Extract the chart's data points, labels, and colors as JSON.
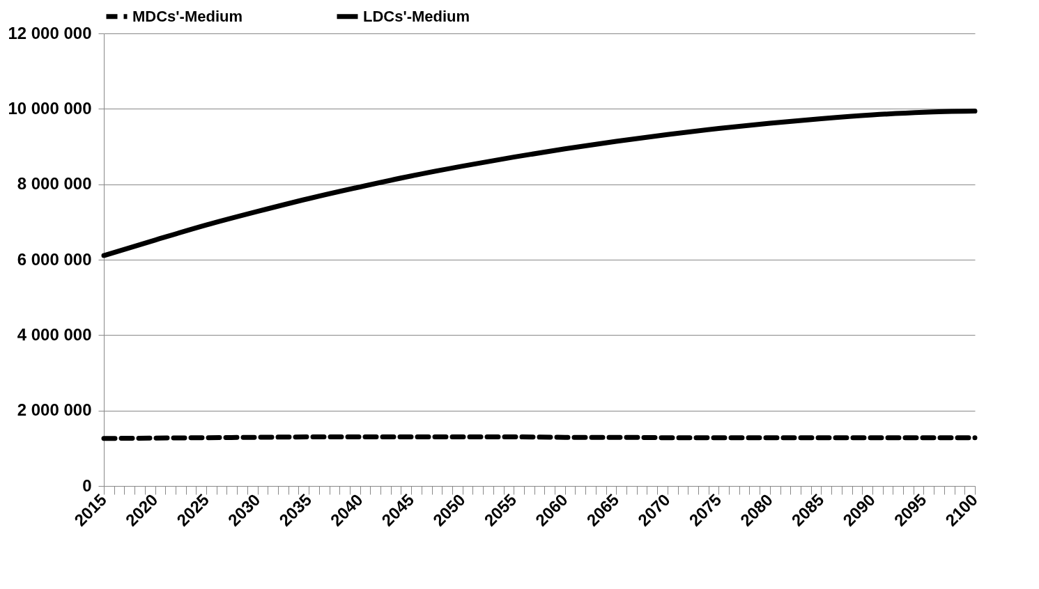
{
  "chart_data": {
    "type": "line",
    "x": [
      2015,
      2020,
      2025,
      2030,
      2035,
      2040,
      2045,
      2050,
      2055,
      2060,
      2065,
      2070,
      2075,
      2080,
      2085,
      2090,
      2095,
      2100
    ],
    "series": [
      {
        "name": "MDCs'-Medium",
        "color": "#000000",
        "line_style": "dashed",
        "values": [
          1260000,
          1270000,
          1280000,
          1290000,
          1300000,
          1300000,
          1300000,
          1300000,
          1300000,
          1290000,
          1290000,
          1280000,
          1280000,
          1280000,
          1280000,
          1280000,
          1280000,
          1280000
        ]
      },
      {
        "name": "LDCs'-Medium",
        "color": "#000000",
        "line_style": "solid",
        "values": [
          6110000,
          6520000,
          6920000,
          7280000,
          7620000,
          7930000,
          8220000,
          8480000,
          8720000,
          8940000,
          9140000,
          9320000,
          9480000,
          9620000,
          9740000,
          9840000,
          9910000,
          9940000
        ]
      }
    ],
    "xlim": [
      2015,
      2100
    ],
    "xticks": [
      2015,
      {
        "value": 2016,
        "label": null
      },
      {
        "value": 2017,
        "label": null
      },
      {
        "value": 2018,
        "label": null
      },
      {
        "value": 2019,
        "label": null
      },
      2020,
      {
        "value": 2021,
        "label": null
      },
      {
        "value": 2022,
        "label": null
      },
      {
        "value": 2023,
        "label": null
      },
      {
        "value": 2024,
        "label": null
      },
      2025,
      {
        "value": 2026,
        "label": null
      },
      {
        "value": 2027,
        "label": null
      },
      {
        "value": 2028,
        "label": null
      },
      {
        "value": 2029,
        "label": null
      },
      2030,
      {
        "value": 2031,
        "label": null
      },
      {
        "value": 2032,
        "label": null
      },
      {
        "value": 2033,
        "label": null
      },
      {
        "value": 2034,
        "label": null
      },
      2035,
      {
        "value": 2036,
        "label": null
      },
      {
        "value": 2037,
        "label": null
      },
      {
        "value": 2038,
        "label": null
      },
      {
        "value": 2039,
        "label": null
      },
      2040,
      {
        "value": 2041,
        "label": null
      },
      {
        "value": 2042,
        "label": null
      },
      {
        "value": 2043,
        "label": null
      },
      {
        "value": 2044,
        "label": null
      },
      2045,
      {
        "value": 2046,
        "label": null
      },
      {
        "value": 2047,
        "label": null
      },
      {
        "value": 2048,
        "label": null
      },
      {
        "value": 2049,
        "label": null
      },
      2050,
      {
        "value": 2051,
        "label": null
      },
      {
        "value": 2052,
        "label": null
      },
      {
        "value": 2053,
        "label": null
      },
      {
        "value": 2054,
        "label": null
      },
      2055,
      {
        "value": 2056,
        "label": null
      },
      {
        "value": 2057,
        "label": null
      },
      {
        "value": 2058,
        "label": null
      },
      {
        "value": 2059,
        "label": null
      },
      2060,
      {
        "value": 2061,
        "label": null
      },
      {
        "value": 2062,
        "label": null
      },
      {
        "value": 2063,
        "label": null
      },
      {
        "value": 2064,
        "label": null
      },
      2065,
      {
        "value": 2066,
        "label": null
      },
      {
        "value": 2067,
        "label": null
      },
      {
        "value": 2068,
        "label": null
      },
      {
        "value": 2069,
        "label": null
      },
      2070,
      {
        "value": 2071,
        "label": null
      },
      {
        "value": 2072,
        "label": null
      },
      {
        "value": 2073,
        "label": null
      },
      {
        "value": 2074,
        "label": null
      },
      2075,
      {
        "value": 2076,
        "label": null
      },
      {
        "value": 2077,
        "label": null
      },
      {
        "value": 2078,
        "label": null
      },
      {
        "value": 2079,
        "label": null
      },
      2080,
      {
        "value": 2081,
        "label": null
      },
      {
        "value": 2082,
        "label": null
      },
      {
        "value": 2083,
        "label": null
      },
      {
        "value": 2084,
        "label": null
      },
      2085,
      {
        "value": 2086,
        "label": null
      },
      {
        "value": 2087,
        "label": null
      },
      {
        "value": 2088,
        "label": null
      },
      {
        "value": 2089,
        "label": null
      },
      2090,
      {
        "value": 2091,
        "label": null
      },
      {
        "value": 2092,
        "label": null
      },
      {
        "value": 2093,
        "label": null
      },
      {
        "value": 2094,
        "label": null
      },
      2095,
      {
        "value": 2096,
        "label": null
      },
      {
        "value": 2097,
        "label": null
      },
      {
        "value": 2098,
        "label": null
      },
      {
        "value": 2099,
        "label": null
      },
      2100
    ],
    "ylim": [
      0,
      12000000
    ],
    "yticks": [
      0,
      {
        "value": 2000000,
        "label": "2 000 000"
      },
      {
        "value": 4000000,
        "label": "4 000 000"
      },
      {
        "value": 6000000,
        "label": "6 000 000"
      },
      {
        "value": 8000000,
        "label": "8 000 000"
      },
      {
        "value": 10000000,
        "label": "10 000 000"
      },
      {
        "value": 12000000,
        "label": "12 000 000"
      }
    ],
    "grid": "y",
    "legend": "top"
  }
}
